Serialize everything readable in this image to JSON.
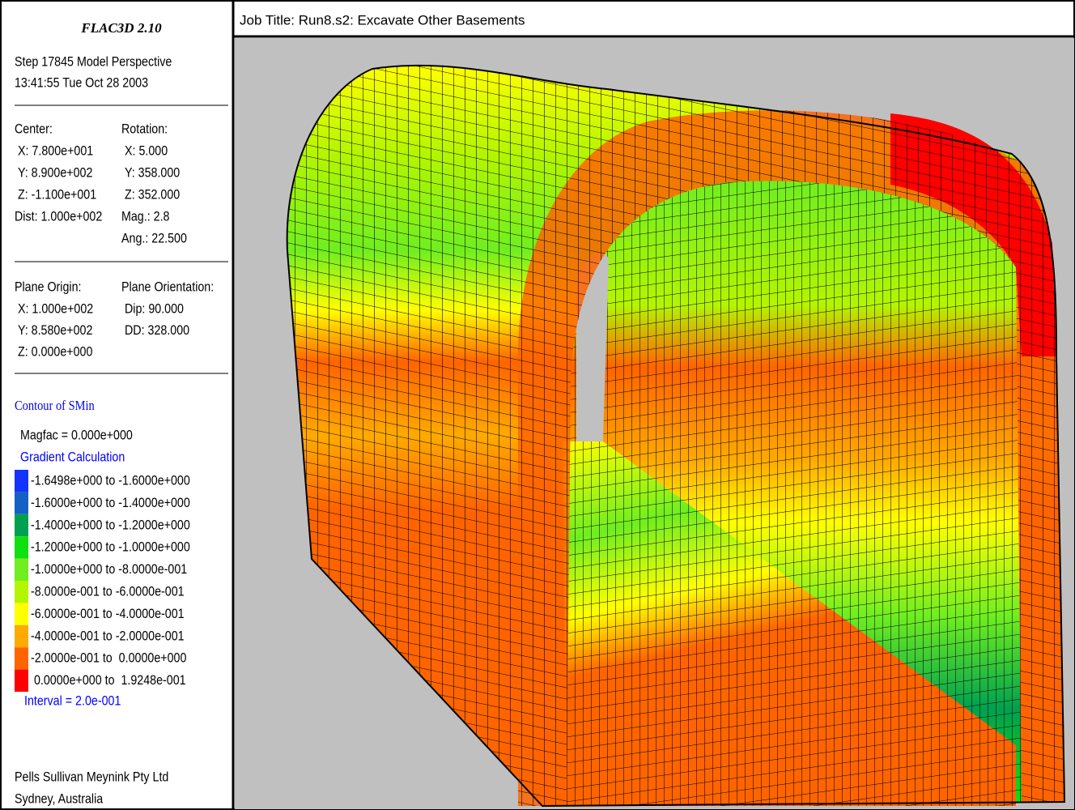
{
  "header": {
    "program": "FLAC3D 2.10",
    "step": "Step 17845  Model Perspective",
    "timestamp": "13:41:55 Tue Oct 28 2003"
  },
  "view": {
    "center_label": "Center:",
    "center": [
      "X: 7.800e+001",
      "Y: 8.900e+002",
      "Z: -1.100e+001",
      "Dist: 1.000e+002"
    ],
    "rotation_label": "Rotation:",
    "rotation": [
      "X:  5.000",
      "Y: 358.000",
      "Z: 352.000",
      "Mag.:    2.8",
      "Ang.: 22.500"
    ]
  },
  "plane": {
    "origin_label": "Plane Origin:",
    "origin": [
      "X: 1.000e+002",
      "Y: 8.580e+002",
      "Z: 0.000e+000"
    ],
    "orientation_label": "Plane Orientation:",
    "orientation": [
      "Dip: 90.000",
      "DD: 328.000"
    ]
  },
  "contour": {
    "title": "Contour of SMin",
    "magfac": "Magfac =  0.000e+000",
    "method": "Gradient Calculation",
    "ranges": [
      {
        "label": "-1.6498e+000 to -1.6000e+000",
        "color": "#1433ff"
      },
      {
        "label": "-1.6000e+000 to -1.4000e+000",
        "color": "#1560c4"
      },
      {
        "label": "-1.4000e+000 to -1.2000e+000",
        "color": "#00a050"
      },
      {
        "label": "-1.2000e+000 to -1.0000e+000",
        "color": "#10e010"
      },
      {
        "label": "-1.0000e+000 to -8.0000e-001",
        "color": "#70ee20"
      },
      {
        "label": "-8.0000e-001 to -6.0000e-001",
        "color": "#b4f500"
      },
      {
        "label": "-6.0000e-001 to -4.0000e-001",
        "color": "#ffff00"
      },
      {
        "label": "-4.0000e-001 to -2.0000e-001",
        "color": "#ffaa00"
      },
      {
        "label": "-2.0000e-001 to  0.0000e+000",
        "color": "#ff6400"
      },
      {
        "label": " 0.0000e+000 to  1.9248e-001",
        "color": "#ff0000"
      }
    ],
    "interval": "Interval =  2.0e-001"
  },
  "footer": [
    "Pells Sullivan Meynink Pty Ltd",
    "Sydney, Australia"
  ],
  "job_title": "Job Title: Run8.s2: Excavate Other Basements"
}
